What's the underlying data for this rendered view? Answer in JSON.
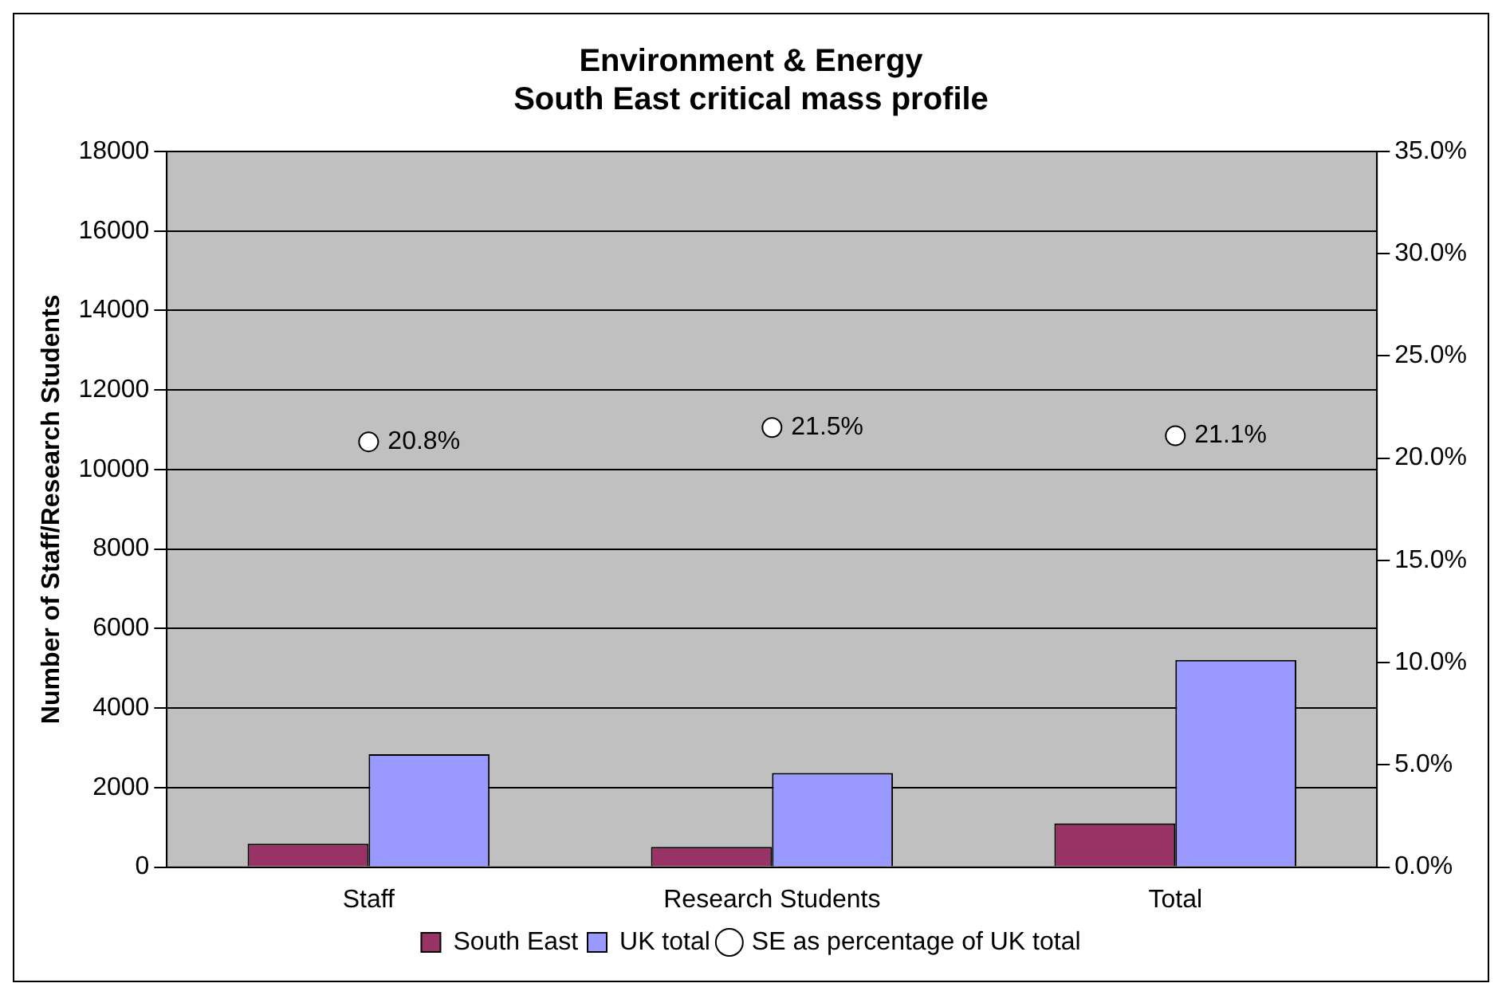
{
  "chart_data": {
    "type": "bar",
    "title": "Environment & Energy",
    "subtitle": "South East critical mass profile",
    "ylabel": "Number of Staff/Research Students",
    "categories": [
      "Staff",
      "Research Students",
      "Total"
    ],
    "series": [
      {
        "name": "South East",
        "color": "#993366",
        "values": [
          590,
          510,
          1100
        ]
      },
      {
        "name": "UK total",
        "color": "#9999ff",
        "values": [
          2840,
          2370,
          5210
        ]
      },
      {
        "name": "SE as percentage of UK total",
        "type": "scatter",
        "axis": "y2",
        "color": "#ffffff",
        "x": [
          "Staff",
          "Research Students",
          "Total"
        ],
        "values": [
          20.8,
          21.5,
          21.1
        ],
        "value_labels": [
          "20.8%",
          "21.5%",
          "21.1%"
        ]
      }
    ],
    "ylim": [
      0,
      18000
    ],
    "yticks": [
      0,
      2000,
      4000,
      6000,
      8000,
      10000,
      12000,
      14000,
      16000,
      18000
    ],
    "y2lim": [
      0,
      35
    ],
    "y2ticks": [
      {
        "value": 0,
        "label": "0.0%"
      },
      {
        "value": 5,
        "label": "5.0%"
      },
      {
        "value": 10,
        "label": "10.0%"
      },
      {
        "value": 15,
        "label": "15.0%"
      },
      {
        "value": 20,
        "label": "20.0%"
      },
      {
        "value": 25,
        "label": "25.0%"
      },
      {
        "value": 30,
        "label": "30.0%"
      },
      {
        "value": 35,
        "label": "35.0%"
      }
    ],
    "grid": "y",
    "legend": "bottom",
    "marker": "circle"
  }
}
